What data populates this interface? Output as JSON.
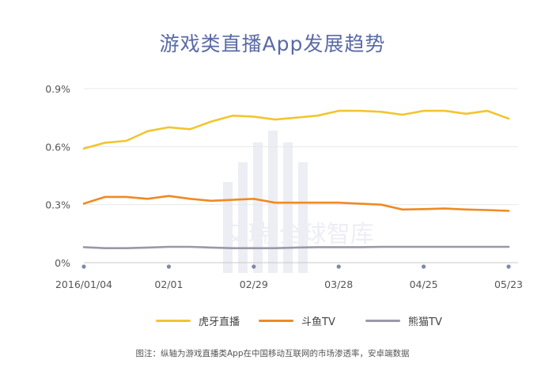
{
  "title": "游戏类直播App发展趋势",
  "caption": "图注：纵轴为游戏直播类App在中国移动互联网的市场渗透率，安卓端数据",
  "watermark": "艾瑞 全球智库",
  "chart_data": {
    "type": "line",
    "title": "游戏类直播App发展趋势",
    "xlabel": "",
    "ylabel": "",
    "ylim": [
      0,
      0.9
    ],
    "y_unit": "%",
    "y_ticks": [
      "0%",
      "0.3%",
      "0.6%",
      "0.9%"
    ],
    "x_tick_labels": [
      "2016/01/04",
      "02/01",
      "02/29",
      "03/28",
      "04/25",
      "05/23"
    ],
    "grid": true,
    "legend_position": "bottom",
    "x": [
      "01/04",
      "01/11",
      "01/18",
      "01/25",
      "02/01",
      "02/08",
      "02/15",
      "02/22",
      "02/29",
      "03/07",
      "03/14",
      "03/21",
      "03/28",
      "04/04",
      "04/11",
      "04/18",
      "04/25",
      "05/02",
      "05/09",
      "05/16",
      "05/23"
    ],
    "series": [
      {
        "name": "虎牙直播",
        "color": "#f2c530",
        "values": [
          0.59,
          0.62,
          0.63,
          0.68,
          0.7,
          0.69,
          0.73,
          0.76,
          0.755,
          0.74,
          0.75,
          0.76,
          0.785,
          0.785,
          0.78,
          0.765,
          0.785,
          0.785,
          0.77,
          0.785,
          0.745
        ]
      },
      {
        "name": "斗鱼TV",
        "color": "#ef8a22",
        "values": [
          0.305,
          0.34,
          0.34,
          0.33,
          0.345,
          0.33,
          0.32,
          0.325,
          0.33,
          0.31,
          0.31,
          0.31,
          0.31,
          0.305,
          0.3,
          0.275,
          0.277,
          0.28,
          0.275,
          0.272,
          0.268
        ]
      },
      {
        "name": "熊猫TV",
        "color": "#9a98a8",
        "values": [
          0.08,
          0.075,
          0.075,
          0.078,
          0.082,
          0.082,
          0.078,
          0.075,
          0.075,
          0.075,
          0.078,
          0.08,
          0.08,
          0.08,
          0.082,
          0.082,
          0.082,
          0.082,
          0.082,
          0.082,
          0.082
        ]
      }
    ]
  }
}
